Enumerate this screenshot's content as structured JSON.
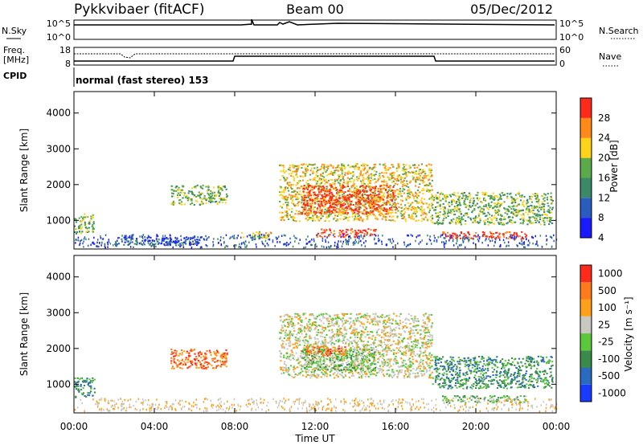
{
  "header": {
    "station": "Pykkvibaer (fitACF)",
    "beam": "Beam 00",
    "date": "05/Dec/2012"
  },
  "top_panels": {
    "nsky_label": "N.Sky",
    "nsearch_label": "N.Search",
    "nsky_ticks": [
      "10^5",
      "10^0"
    ],
    "nsearch_ticks": [
      "10^5",
      "10^0"
    ],
    "freq_label_1": "Freq.",
    "freq_label_2": "[MHz]",
    "freq_ticks": [
      "18",
      "8"
    ],
    "nave_label": "Nave",
    "nave_ticks": [
      "60",
      "0"
    ],
    "cpid_label": "CPID",
    "cpid_text": "normal (fast stereo) 153"
  },
  "chart_data": [
    {
      "type": "heatmap",
      "name": "power",
      "ylabel": "Slant Range [km]",
      "yticks": [
        "1000",
        "2000",
        "3000",
        "4000"
      ],
      "ylim": [
        200,
        4600
      ],
      "xlim": [
        "00:00",
        "24:00"
      ],
      "colorbar_label": "Power [dB]",
      "colorbar_ticks": [
        "28",
        "24",
        "20",
        "16",
        "12",
        "8",
        "4"
      ],
      "colors": [
        "#1a1aff",
        "#2a5bbf",
        "#3a8a6a",
        "#5aaa4a",
        "#ffd21a",
        "#ff8a1a",
        "#ff2a1a"
      ],
      "regions": [
        {
          "t": [
            0.0,
            1.0
          ],
          "r": [
            650,
            1200
          ],
          "level": 3
        },
        {
          "t": [
            2.0,
            6.3
          ],
          "r": [
            320,
            560
          ],
          "level": 1
        },
        {
          "t": [
            4.8,
            7.6
          ],
          "r": [
            1450,
            2000
          ],
          "level": 3
        },
        {
          "t": [
            8.3,
            9.8
          ],
          "r": [
            520,
            700
          ],
          "level": 4
        },
        {
          "t": [
            10.2,
            17.8
          ],
          "r": [
            1000,
            2600
          ],
          "level": 4
        },
        {
          "t": [
            11.3,
            16.0
          ],
          "r": [
            1200,
            2000
          ],
          "level": 6
        },
        {
          "t": [
            12.0,
            15.0
          ],
          "r": [
            550,
            780
          ],
          "level": 6
        },
        {
          "t": [
            17.8,
            23.8
          ],
          "r": [
            900,
            1800
          ],
          "level": 3
        },
        {
          "t": [
            18.3,
            22.5
          ],
          "r": [
            500,
            700
          ],
          "level": 6
        }
      ]
    },
    {
      "type": "heatmap",
      "name": "velocity",
      "ylabel": "Slant Range [km]",
      "yticks": [
        "1000",
        "2000",
        "3000",
        "4000"
      ],
      "ylim": [
        200,
        4600
      ],
      "xlim": [
        "00:00",
        "24:00"
      ],
      "xlabel": "Time UT",
      "xticks": [
        "00:00",
        "04:00",
        "08:00",
        "12:00",
        "16:00",
        "20:00",
        "00:00"
      ],
      "colorbar_label": "Velocity [m s⁻¹]",
      "colorbar_ticks": [
        "1000",
        "500",
        "100",
        "25",
        "-25",
        "-100",
        "-500",
        "-1000"
      ],
      "colors": [
        "#1a3aff",
        "#2a6bbf",
        "#3a8a4a",
        "#5ac83a",
        "#c8c8c0",
        "#ffa01a",
        "#ff7a1a",
        "#ff2a1a"
      ],
      "regions": [
        {
          "t": [
            0.0,
            1.0
          ],
          "r": [
            650,
            1200
          ],
          "level": 2
        },
        {
          "t": [
            4.8,
            7.6
          ],
          "r": [
            1450,
            2000
          ],
          "level": 6
        },
        {
          "t": [
            10.2,
            17.8
          ],
          "r": [
            1200,
            3000
          ],
          "level": 4
        },
        {
          "t": [
            11.3,
            15.0
          ],
          "r": [
            1400,
            2000
          ],
          "level": 3
        },
        {
          "t": [
            11.5,
            13.5
          ],
          "r": [
            1800,
            2100
          ],
          "level": 6
        },
        {
          "t": [
            17.8,
            23.8
          ],
          "r": [
            900,
            1800
          ],
          "level": 2
        },
        {
          "t": [
            18.3,
            22.5
          ],
          "r": [
            500,
            700
          ],
          "level": 3
        }
      ]
    }
  ]
}
